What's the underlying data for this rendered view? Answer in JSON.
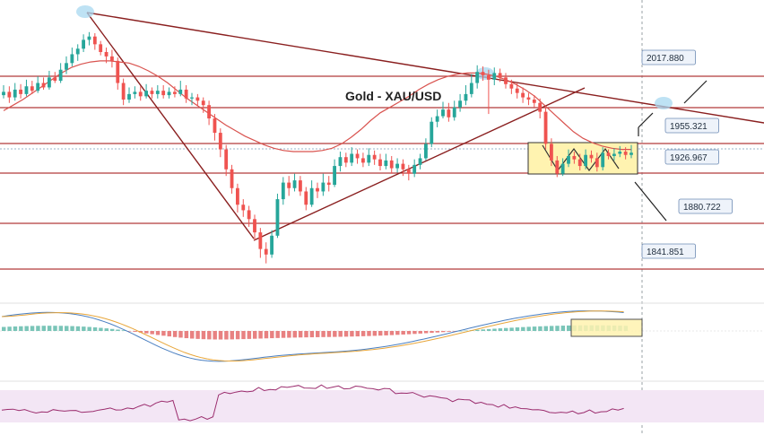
{
  "chart_data": [
    {
      "type": "candlestick",
      "title": "Gold - XAU/USD",
      "levels": [
        2017.88,
        1955.321,
        1926.967,
        1880.722,
        1841.851
      ],
      "ylim": [
        1815,
        2085
      ],
      "candles": [
        [
          1999,
          2002,
          2008,
          1996
        ],
        [
          2002,
          1997,
          2007,
          1992
        ],
        [
          1997,
          2004,
          2010,
          1994
        ],
        [
          2004,
          2000,
          2009,
          1996
        ],
        [
          2000,
          2007,
          2013,
          1998
        ],
        [
          2007,
          2003,
          2012,
          2000
        ],
        [
          2003,
          2010,
          2016,
          2001
        ],
        [
          2010,
          2006,
          2015,
          2004
        ],
        [
          2006,
          2015,
          2021,
          2004
        ],
        [
          2015,
          2012,
          2020,
          2010
        ],
        [
          2012,
          2022,
          2028,
          2010
        ],
        [
          2022,
          2028,
          2034,
          2018
        ],
        [
          2028,
          2036,
          2042,
          2025
        ],
        [
          2036,
          2041,
          2045,
          2030
        ],
        [
          2041,
          2049,
          2054,
          2038
        ],
        [
          2049,
          2052,
          2056,
          2044
        ],
        [
          2052,
          2045,
          2055,
          2040
        ],
        [
          2045,
          2038,
          2048,
          2035
        ],
        [
          2038,
          2034,
          2042,
          2028
        ],
        [
          2034,
          2030,
          2040,
          2024
        ],
        [
          2030,
          2010,
          2033,
          2004
        ],
        [
          2010,
          1995,
          2014,
          1990
        ],
        [
          1995,
          2000,
          2006,
          1992
        ],
        [
          2000,
          2002,
          2007,
          1996
        ],
        [
          2002,
          1998,
          2007,
          1994
        ],
        [
          1998,
          2003,
          2009,
          1996
        ],
        [
          2003,
          2000,
          2006,
          1996
        ],
        [
          2000,
          2003,
          2008,
          1996
        ],
        [
          2003,
          1999,
          2008,
          1996
        ],
        [
          1999,
          2002,
          2006,
          1996
        ],
        [
          2002,
          2000,
          2007,
          1997
        ],
        [
          2000,
          2004,
          2012,
          1998
        ],
        [
          2004,
          1996,
          2008,
          1992
        ],
        [
          1996,
          1997,
          2001,
          1990
        ],
        [
          1997,
          1994,
          2000,
          1989
        ],
        [
          1994,
          1990,
          1997,
          1983
        ],
        [
          1990,
          1978,
          1994,
          1972
        ],
        [
          1978,
          1965,
          1982,
          1958
        ],
        [
          1965,
          1950,
          1969,
          1943
        ],
        [
          1950,
          1932,
          1954,
          1926
        ],
        [
          1932,
          1915,
          1936,
          1910
        ],
        [
          1915,
          1900,
          1919,
          1893
        ],
        [
          1900,
          1895,
          1905,
          1889
        ],
        [
          1895,
          1887,
          1899,
          1880
        ],
        [
          1887,
          1875,
          1891,
          1868
        ],
        [
          1875,
          1860,
          1879,
          1852
        ],
        [
          1860,
          1855,
          1866,
          1847
        ],
        [
          1855,
          1872,
          1877,
          1852
        ],
        [
          1872,
          1905,
          1910,
          1870
        ],
        [
          1905,
          1920,
          1925,
          1900
        ],
        [
          1920,
          1915,
          1926,
          1908
        ],
        [
          1915,
          1922,
          1928,
          1912
        ],
        [
          1922,
          1912,
          1926,
          1908
        ],
        [
          1912,
          1900,
          1916,
          1895
        ],
        [
          1900,
          1915,
          1922,
          1898
        ],
        [
          1915,
          1912,
          1920,
          1906
        ],
        [
          1912,
          1920,
          1928,
          1908
        ],
        [
          1920,
          1918,
          1926,
          1912
        ],
        [
          1918,
          1935,
          1941,
          1916
        ],
        [
          1935,
          1943,
          1948,
          1930
        ],
        [
          1943,
          1938,
          1947,
          1934
        ],
        [
          1938,
          1946,
          1952,
          1935
        ],
        [
          1946,
          1942,
          1950,
          1937
        ],
        [
          1942,
          1938,
          1947,
          1934
        ],
        [
          1938,
          1945,
          1951,
          1935
        ],
        [
          1945,
          1941,
          1949,
          1936
        ],
        [
          1941,
          1935,
          1946,
          1931
        ],
        [
          1935,
          1940,
          1946,
          1932
        ],
        [
          1940,
          1933,
          1944,
          1928
        ],
        [
          1933,
          1937,
          1942,
          1929
        ],
        [
          1937,
          1932,
          1941,
          1926
        ],
        [
          1932,
          1928,
          1936,
          1922
        ],
        [
          1928,
          1936,
          1941,
          1925
        ],
        [
          1936,
          1942,
          1946,
          1932
        ],
        [
          1942,
          1955,
          1960,
          1940
        ],
        [
          1955,
          1975,
          1979,
          1952
        ],
        [
          1975,
          1980,
          1986,
          1970
        ],
        [
          1980,
          1986,
          1993,
          1978
        ],
        [
          1986,
          1979,
          1992,
          1975
        ],
        [
          1979,
          1988,
          1994,
          1976
        ],
        [
          1988,
          1994,
          2000,
          1984
        ],
        [
          1994,
          2000,
          2008,
          1990
        ],
        [
          2000,
          2010,
          2018,
          1997
        ],
        [
          2010,
          2020,
          2026,
          2005
        ],
        [
          2020,
          2017,
          2025,
          2012
        ],
        [
          2017,
          2013,
          2022,
          1982
        ],
        [
          2013,
          2019,
          2024,
          2008
        ],
        [
          2019,
          2015,
          2023,
          2011
        ],
        [
          2015,
          2009,
          2019,
          2005
        ],
        [
          2009,
          2005,
          2013,
          2000
        ],
        [
          2005,
          2001,
          2010,
          1996
        ],
        [
          2001,
          1997,
          2006,
          1992
        ],
        [
          1997,
          1995,
          2001,
          1990
        ],
        [
          1995,
          1992,
          1999,
          1988
        ],
        [
          1992,
          1984,
          1996,
          1978
        ],
        [
          1984,
          1955,
          1988,
          1950
        ],
        [
          1955,
          1940,
          1960,
          1935
        ],
        [
          1940,
          1928,
          1944,
          1925
        ],
        [
          1928,
          1937,
          1942,
          1926
        ],
        [
          1937,
          1944,
          1950,
          1934
        ],
        [
          1944,
          1941,
          1948,
          1937
        ],
        [
          1941,
          1935,
          1946,
          1931
        ],
        [
          1935,
          1945,
          1950,
          1932
        ],
        [
          1945,
          1942,
          1949,
          1938
        ],
        [
          1942,
          1934,
          1947,
          1930
        ],
        [
          1934,
          1947,
          1952,
          1931
        ],
        [
          1947,
          1944,
          1950,
          1941
        ],
        [
          1944,
          1946,
          1951,
          1940
        ],
        [
          1946,
          1948,
          1953,
          1943
        ],
        [
          1948,
          1945,
          1952,
          1941
        ],
        [
          1945,
          1947,
          1954,
          1942
        ]
      ],
      "moving_average": [
        1985,
        1990,
        1995,
        2001,
        2007,
        2013,
        2019,
        2024,
        2027,
        2029,
        2030,
        2030,
        2029,
        2028,
        2025,
        2021,
        2016,
        2010,
        2003,
        1996,
        1990,
        1984,
        1978,
        1972,
        1967,
        1962,
        1958,
        1954,
        1951,
        1949,
        1948,
        1948,
        1948,
        1949,
        1951,
        1955,
        1961,
        1968,
        1976,
        1983,
        1988,
        1993,
        1998,
        2004,
        2009,
        2013,
        2016,
        2018,
        2019,
        2019,
        2018,
        2016,
        2013,
        2009,
        2004,
        1998,
        1990,
        1982,
        1974,
        1966,
        1960,
        1956,
        1953,
        1951,
        1950,
        1950
      ],
      "indicators": [
        {
          "type": "macd",
          "lines": [
            "macd",
            "signal"
          ],
          "histogram": true
        },
        {
          "type": "rsi"
        }
      ]
    }
  ],
  "theme": {
    "bull": "#26a69a",
    "bear": "#ef5350",
    "level": "#b23b3b",
    "trend": "#8a1f1f",
    "ma": "#d9534f",
    "box_fill": "#fff3b0",
    "box_stroke": "#333333",
    "label_fill": "#eef3fa",
    "label_stroke": "#6f8cb5",
    "rsi_fill": "#f3e6f5",
    "rsi_line": "#9b2d6e",
    "macd_line": "#4a7fc1",
    "signal_line": "#e8a63a",
    "highlight": "#a8d8f0"
  }
}
